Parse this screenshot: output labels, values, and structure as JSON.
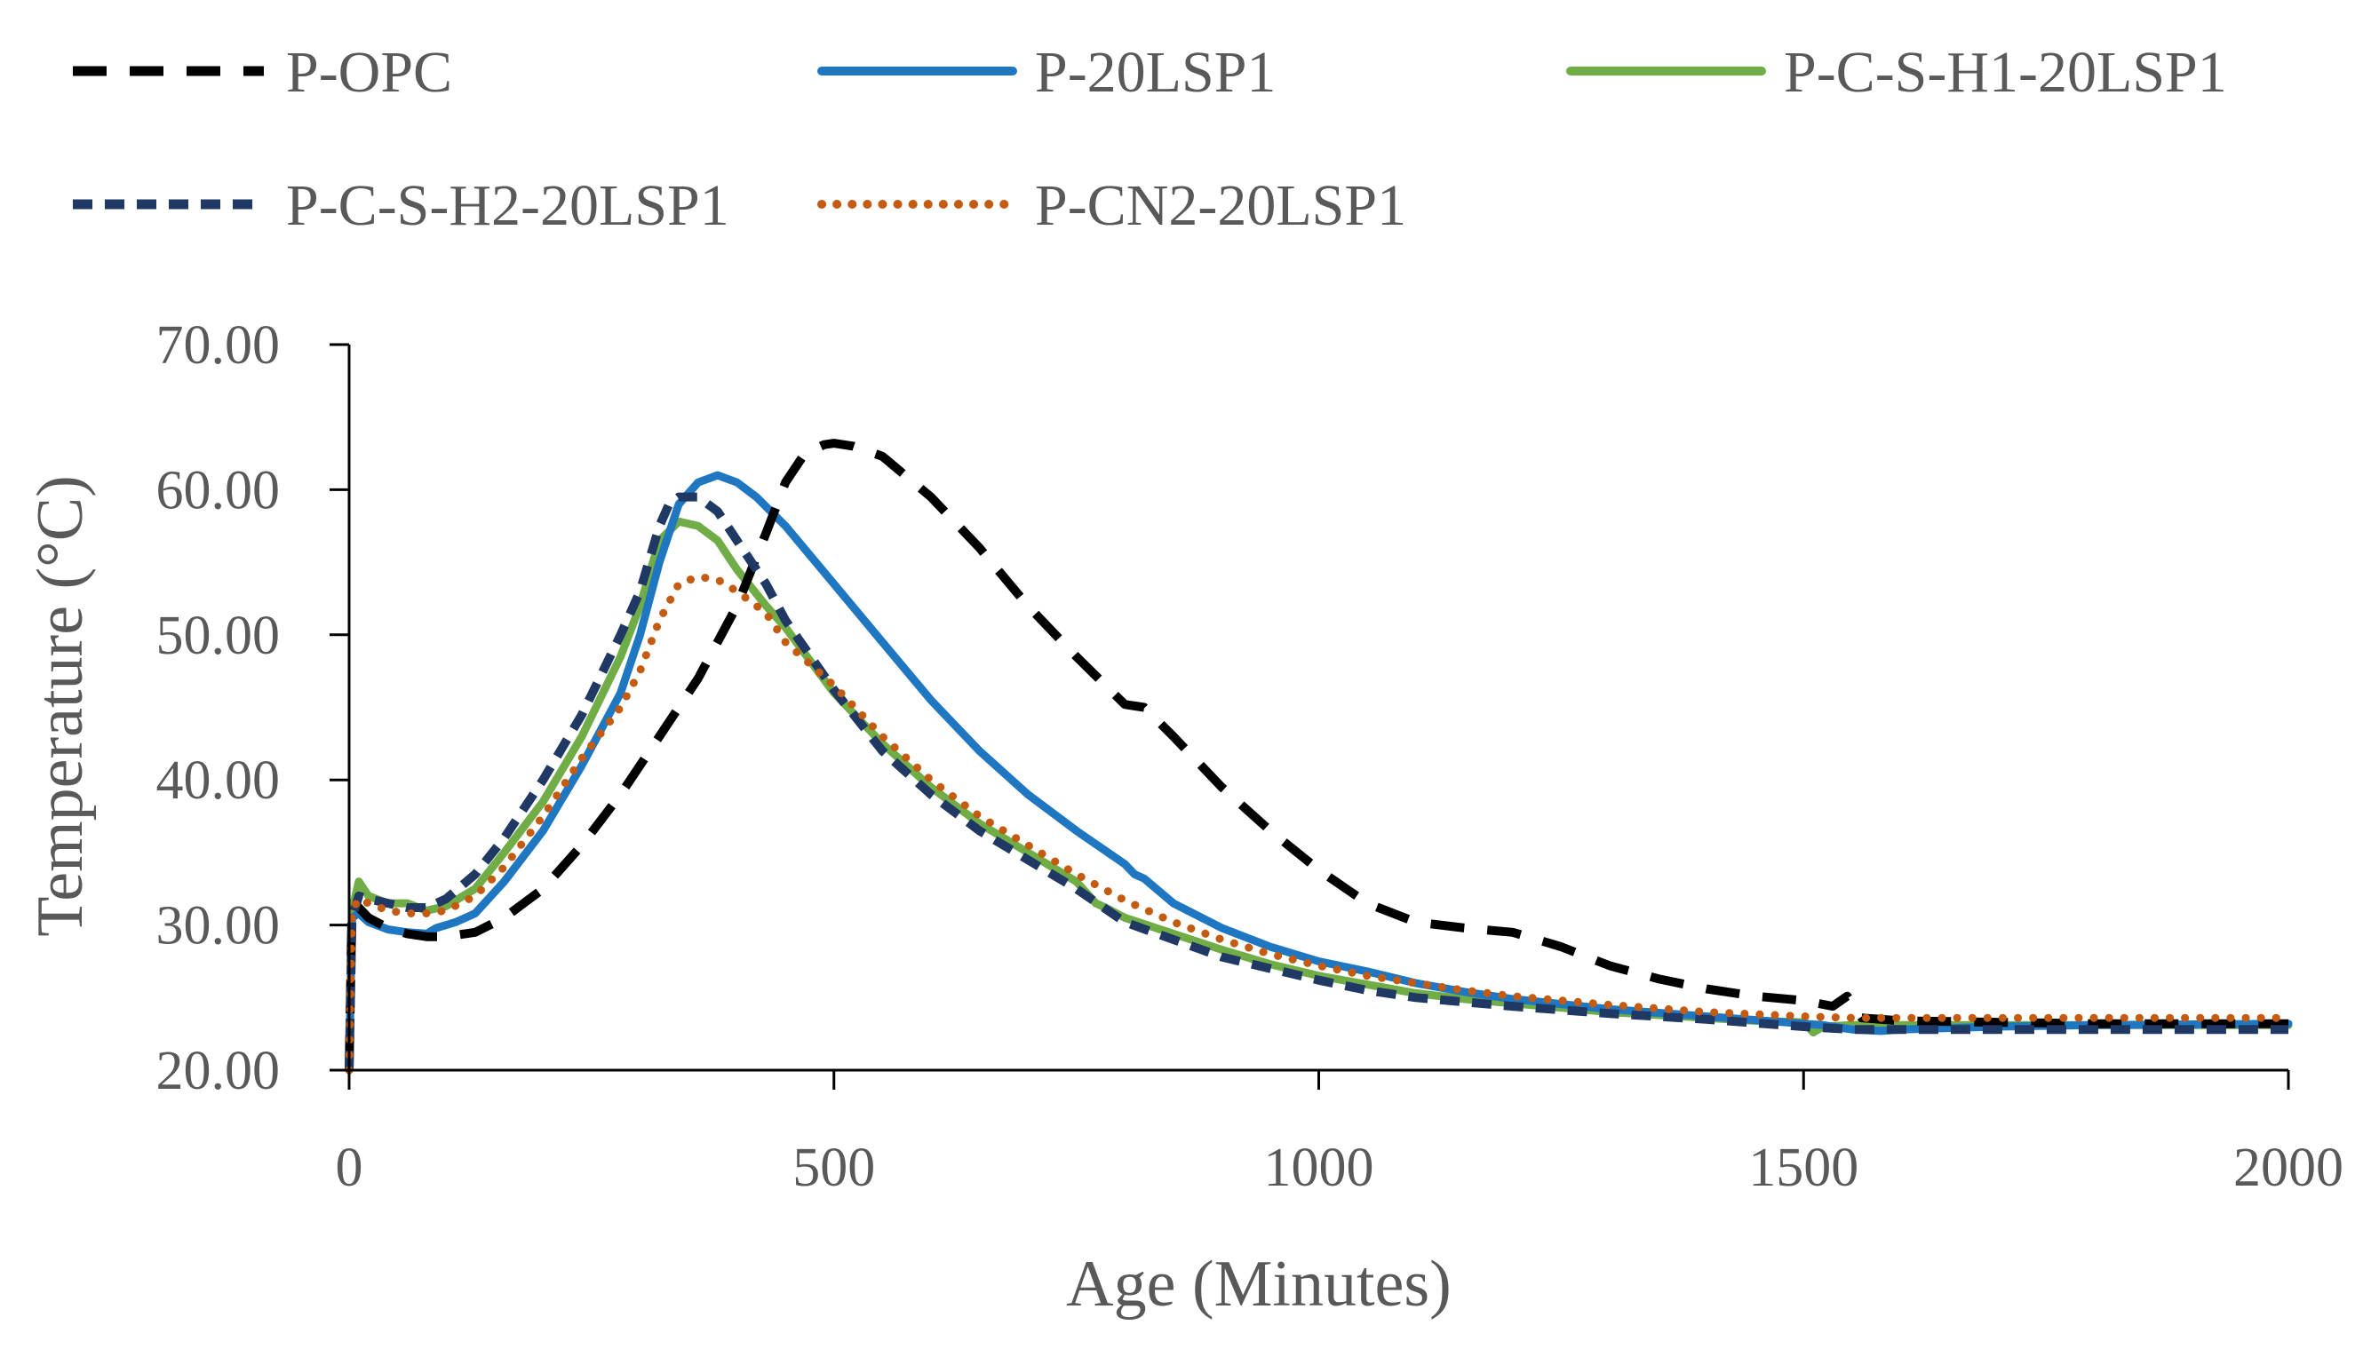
{
  "chart_data": {
    "type": "line",
    "title": "",
    "xlabel": "Age (Minutes)",
    "ylabel": "Temperature (°C)",
    "xlim": [
      0,
      2000
    ],
    "ylim": [
      20,
      70
    ],
    "xticks": [
      0,
      500,
      1000,
      1500,
      2000
    ],
    "xtick_labels": [
      "0",
      "500",
      "1000",
      "1500",
      "2000"
    ],
    "yticks": [
      20,
      30,
      40,
      50,
      60,
      70
    ],
    "ytick_labels": [
      "20.00",
      "30.00",
      "40.00",
      "50.00",
      "60.00",
      "70.00"
    ],
    "grid": false,
    "legend_position": "top",
    "series": [
      {
        "name": "P-OPC",
        "color": "#000000",
        "line_style": "long-dash",
        "x": [
          0,
          3,
          10,
          20,
          40,
          60,
          80,
          100,
          130,
          160,
          200,
          240,
          280,
          320,
          360,
          400,
          430,
          450,
          470,
          490,
          500,
          520,
          550,
          600,
          650,
          700,
          750,
          800,
          820,
          850,
          900,
          950,
          1000,
          1050,
          1100,
          1150,
          1200,
          1250,
          1300,
          1350,
          1400,
          1450,
          1500,
          1530,
          1545,
          1560,
          1600,
          1700,
          1800,
          1900,
          2000
        ],
        "values": [
          20,
          31.5,
          31.2,
          30.5,
          29.8,
          29.4,
          29.2,
          29.2,
          29.5,
          30.5,
          32.5,
          35.5,
          39,
          43,
          47,
          52,
          57,
          60.5,
          62.5,
          63.1,
          63.2,
          63,
          62.3,
          59.5,
          56,
          52,
          48.5,
          45.2,
          45,
          43,
          39.5,
          36.5,
          33.8,
          31.5,
          30.2,
          29.8,
          29.5,
          28.5,
          27.2,
          26.3,
          25.6,
          25.1,
          24.8,
          24.4,
          25.1,
          23.6,
          23.4,
          23.3,
          23.2,
          23.2,
          23.2
        ]
      },
      {
        "name": "P-20LSP1",
        "color": "#1f77c2",
        "line_style": "solid",
        "x": [
          0,
          3,
          10,
          20,
          40,
          60,
          80,
          90,
          110,
          130,
          160,
          200,
          240,
          280,
          300,
          320,
          340,
          360,
          380,
          400,
          420,
          450,
          500,
          550,
          600,
          650,
          700,
          750,
          800,
          810,
          820,
          850,
          900,
          950,
          1000,
          1050,
          1100,
          1150,
          1200,
          1300,
          1400,
          1500,
          1520,
          1550,
          1580,
          1600,
          1700,
          1800,
          2000
        ],
        "values": [
          20,
          30.5,
          30.8,
          30.2,
          29.7,
          29.5,
          29.4,
          29.8,
          30.2,
          30.8,
          33,
          36.5,
          41,
          46,
          50,
          55,
          59,
          60.5,
          61,
          60.5,
          59.5,
          57.5,
          53.5,
          49.5,
          45.5,
          42,
          39,
          36.5,
          34.2,
          33.5,
          33.2,
          31.5,
          29.8,
          28.5,
          27.5,
          26.8,
          26,
          25.4,
          24.9,
          24.2,
          23.7,
          23.2,
          23.1,
          22.8,
          22.7,
          22.8,
          23,
          23.1,
          23.2
        ]
      },
      {
        "name": "P-C-S-H1-20LSP1",
        "color": "#70ad47",
        "line_style": "solid",
        "x": [
          0,
          3,
          10,
          20,
          40,
          60,
          80,
          100,
          130,
          160,
          200,
          240,
          280,
          300,
          320,
          340,
          360,
          380,
          400,
          430,
          450,
          500,
          550,
          600,
          650,
          700,
          750,
          770,
          780,
          800,
          850,
          900,
          950,
          1000,
          1050,
          1100,
          1150,
          1200,
          1300,
          1400,
          1450,
          1500,
          1510,
          1520,
          1550,
          1600,
          1700,
          1800,
          2000
        ],
        "values": [
          20,
          31,
          33,
          32,
          31.5,
          31.5,
          31,
          31.3,
          32.5,
          35,
          38.5,
          43,
          48.5,
          52,
          56.5,
          57.8,
          57.5,
          56.5,
          54.5,
          52,
          50.5,
          46,
          42.5,
          39.5,
          37,
          35,
          33,
          31.5,
          31.2,
          30.5,
          29.4,
          28.3,
          27.3,
          26.5,
          25.9,
          25.3,
          24.9,
          24.6,
          24,
          23.6,
          23.4,
          23.3,
          22.6,
          23,
          23.1,
          23.1,
          23.1,
          23.1,
          23.1
        ]
      },
      {
        "name": "P-C-S-H2-20LSP1",
        "color": "#203864",
        "line_style": "short-dash",
        "x": [
          0,
          3,
          10,
          20,
          40,
          60,
          80,
          100,
          130,
          160,
          200,
          240,
          280,
          300,
          320,
          330,
          340,
          360,
          380,
          400,
          430,
          450,
          500,
          550,
          600,
          650,
          700,
          750,
          800,
          850,
          900,
          950,
          1000,
          1050,
          1100,
          1150,
          1200,
          1300,
          1400,
          1500,
          1550,
          1600,
          1700,
          1800,
          2000
        ],
        "values": [
          20,
          30.5,
          32,
          31.8,
          31.5,
          31.2,
          31.2,
          31.8,
          33.5,
          36,
          40,
          44.5,
          50,
          53,
          57.5,
          59,
          59.5,
          59.5,
          58.5,
          56.5,
          53.5,
          51,
          46.2,
          42,
          39,
          36.5,
          34.5,
          32.5,
          30.2,
          29,
          27.8,
          27,
          26.2,
          25.5,
          25,
          24.7,
          24.4,
          23.9,
          23.5,
          23,
          22.8,
          22.8,
          22.8,
          22.8,
          22.8
        ]
      },
      {
        "name": "P-CN2-20LSP1",
        "color": "#c55a11",
        "line_style": "dotted",
        "x": [
          0,
          3,
          10,
          20,
          40,
          60,
          80,
          100,
          130,
          160,
          200,
          240,
          280,
          300,
          320,
          340,
          360,
          380,
          400,
          430,
          450,
          500,
          550,
          600,
          650,
          700,
          750,
          800,
          850,
          900,
          950,
          1000,
          1050,
          1100,
          1150,
          1200,
          1300,
          1400,
          1500,
          1550,
          1600,
          1700,
          1800,
          2000
        ],
        "values": [
          20,
          31,
          31.8,
          31.5,
          31,
          30.8,
          30.8,
          31,
          32,
          34,
          37.5,
          41.5,
          45,
          47.5,
          51,
          53.5,
          54,
          53.8,
          53,
          51.5,
          49.5,
          46.5,
          43,
          40,
          37.5,
          35.5,
          33.5,
          31.7,
          30.2,
          29,
          28,
          27.2,
          26.5,
          26,
          25.5,
          25.1,
          24.5,
          24,
          23.7,
          23.6,
          23.6,
          23.6,
          23.6,
          23.6
        ]
      }
    ]
  }
}
